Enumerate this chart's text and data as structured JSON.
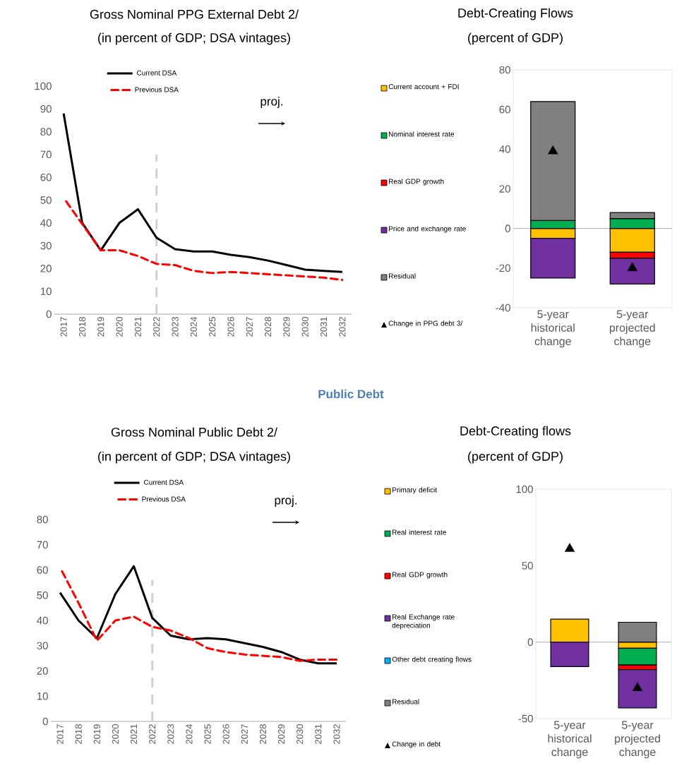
{
  "chart_data": [
    {
      "type": "line",
      "title": "Gross Nominal PPG External Debt 2/",
      "subtitle": "(in percent of GDP; DSA vintages)",
      "x": [
        2017,
        2018,
        2019,
        2020,
        2021,
        2022,
        2023,
        2024,
        2025,
        2026,
        2027,
        2028,
        2029,
        2030,
        2031,
        2032
      ],
      "xlim": [
        2016.5,
        2032.5
      ],
      "xticks": [
        2017,
        2018,
        2019,
        2020,
        2021,
        2022,
        2023,
        2024,
        2025,
        2026,
        2027,
        2028,
        2029,
        2030,
        2031,
        2032
      ],
      "ylim": [
        0,
        100
      ],
      "yticks": [
        0,
        10,
        20,
        30,
        40,
        50,
        60,
        70,
        80,
        90,
        100
      ],
      "series": [
        {
          "name": "Current DSA",
          "color": "#000000",
          "line_style": "solid",
          "values": [
            88,
            40,
            28,
            40,
            46,
            33.5,
            28.5,
            27.5,
            27.5,
            26,
            25,
            23.5,
            21.5,
            19.5,
            19,
            18.5
          ]
        },
        {
          "name": "Previous DSA",
          "color": "#ff0000",
          "line_style": "dashed",
          "values": [
            51,
            39.5,
            28,
            28,
            25.5,
            22,
            21.5,
            19,
            18,
            18.5,
            18,
            17.5,
            17,
            16.5,
            16,
            15
          ]
        }
      ],
      "ref_lines": [
        {
          "axis": "x",
          "value": 2022,
          "color": "#d0d0d0",
          "line_style": "dashed"
        }
      ],
      "annotations": [
        "proj."
      ],
      "legend": "top left"
    },
    {
      "type": "bar",
      "stacked": true,
      "title": "Debt-Creating Flows",
      "subtitle": "(percent of GDP)",
      "categories": [
        "5-year historical change",
        "5-year projected change"
      ],
      "ylim": [
        -40,
        80
      ],
      "yticks": [
        -40,
        -20,
        0,
        20,
        40,
        60,
        80
      ],
      "series": [
        {
          "name": "Current account + FDI",
          "color": "#ffc000",
          "values": [
            -5,
            -12
          ]
        },
        {
          "name": "Nominal interest rate",
          "color": "#00b050",
          "values": [
            4,
            5
          ]
        },
        {
          "name": "Real GDP growth",
          "color": "#ff0000",
          "values": [
            0,
            -3
          ]
        },
        {
          "name": "Price and exchange rate",
          "color": "#7030a0",
          "values": [
            -20,
            -13
          ]
        },
        {
          "name": "Residual",
          "color": "#808080",
          "values": [
            60,
            3
          ]
        },
        {
          "name": "Change in PPG debt 3/",
          "type": "scatter",
          "marker": "triangle",
          "color": "#000000",
          "values": [
            39,
            -20
          ]
        }
      ],
      "ref_lines": [
        {
          "axis": "y",
          "value": 0,
          "color": "#bfbfbf"
        }
      ],
      "legend": "left"
    },
    {
      "type": "line",
      "title": "Gross Nominal Public Debt 2/",
      "subtitle": "(in percent of GDP; DSA vintages)",
      "x": [
        2017,
        2018,
        2019,
        2020,
        2021,
        2022,
        2023,
        2024,
        2025,
        2026,
        2027,
        2028,
        2029,
        2030,
        2031,
        2032
      ],
      "xlim": [
        2016.5,
        2032.5
      ],
      "xticks": [
        2017,
        2018,
        2019,
        2020,
        2021,
        2022,
        2023,
        2024,
        2025,
        2026,
        2027,
        2028,
        2029,
        2030,
        2031,
        2032
      ],
      "ylim": [
        0,
        80
      ],
      "yticks": [
        0,
        10,
        20,
        30,
        40,
        50,
        60,
        70,
        80
      ],
      "series": [
        {
          "name": "Current DSA",
          "color": "#000000",
          "line_style": "solid",
          "values": [
            51,
            40,
            33,
            50.5,
            61.5,
            41,
            34,
            32.5,
            33,
            32.5,
            31,
            29.5,
            27.5,
            24.5,
            23,
            23
          ]
        },
        {
          "name": "Previous DSA",
          "color": "#ff0000",
          "line_style": "dashed",
          "values": [
            61,
            47,
            32,
            40,
            41.5,
            37.5,
            36,
            33,
            29,
            27.5,
            26.5,
            26,
            25.5,
            24,
            24.5,
            24.5
          ]
        }
      ],
      "ref_lines": [
        {
          "axis": "x",
          "value": 2022,
          "color": "#d0d0d0",
          "line_style": "dashed"
        }
      ],
      "annotations": [
        "Public Debt",
        "proj."
      ],
      "legend": "top left"
    },
    {
      "type": "bar",
      "stacked": true,
      "title": "Debt-Creating flows",
      "subtitle": "(percent of GDP)",
      "categories": [
        "5-year historical change",
        "5-year projected change"
      ],
      "ylim": [
        -50,
        100
      ],
      "yticks": [
        -50,
        0,
        50,
        100
      ],
      "series": [
        {
          "name": "Primary deficit",
          "color": "#ffc000",
          "values": [
            15,
            -4
          ]
        },
        {
          "name": "Real interest rate",
          "color": "#00b050",
          "values": [
            0,
            -11
          ]
        },
        {
          "name": "Real GDP growth",
          "color": "#ff0000",
          "values": [
            0,
            -3
          ]
        },
        {
          "name": "Real Exchange rate depreciation",
          "color": "#7030a0",
          "values": [
            -16,
            -25
          ]
        },
        {
          "name": "Other debt creating flows",
          "color": "#00b0f0",
          "values": [
            0,
            0
          ]
        },
        {
          "name": "Residual",
          "color": "#808080",
          "values": [
            0,
            13
          ]
        },
        {
          "name": "Change in debt",
          "type": "scatter",
          "marker": "triangle",
          "color": "#000000",
          "values": [
            61,
            -30
          ]
        }
      ],
      "ref_lines": [
        {
          "axis": "y",
          "value": 0,
          "color": "#bfbfbf"
        }
      ],
      "legend": "left"
    }
  ]
}
